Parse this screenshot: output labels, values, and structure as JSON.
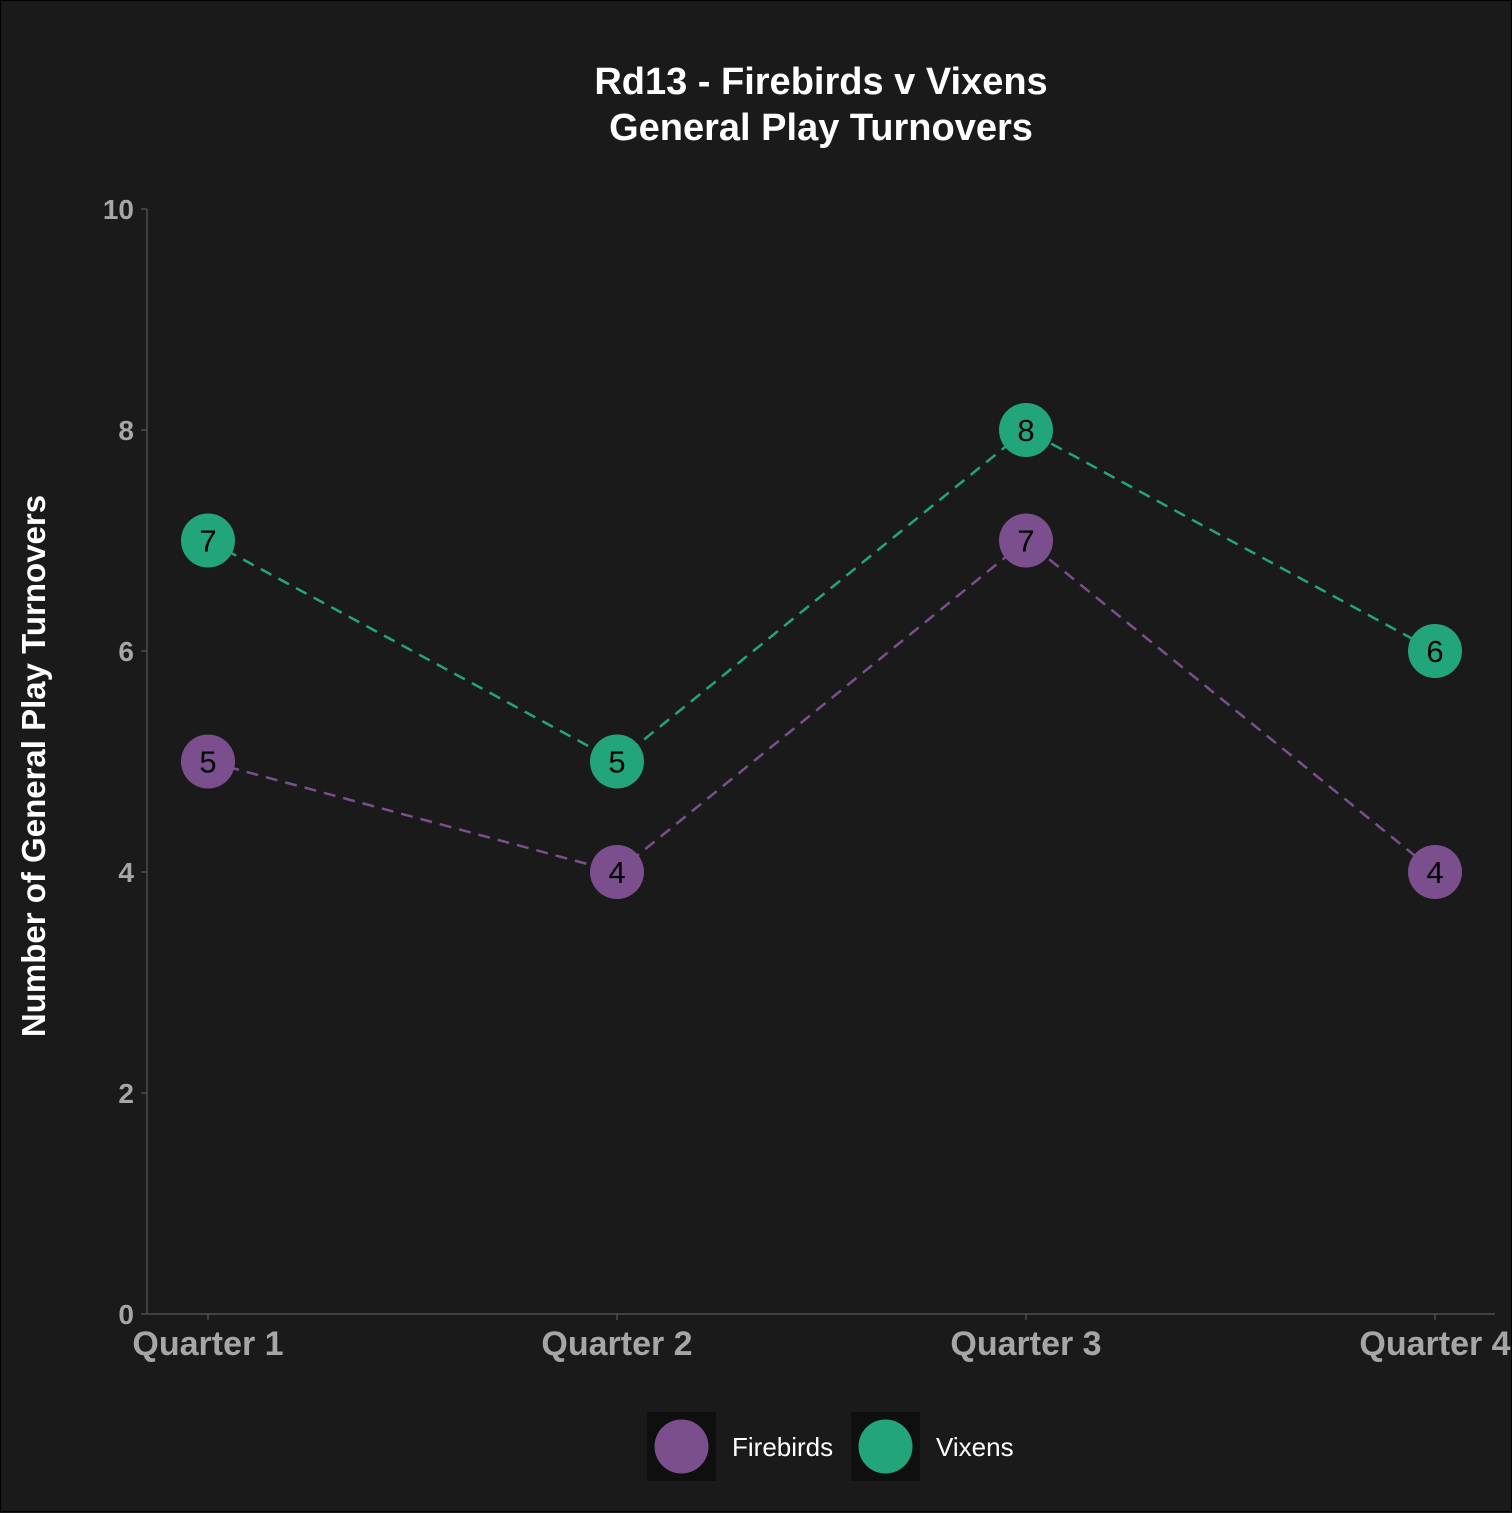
{
  "chart_data": {
    "type": "line",
    "title": [
      "Rd13 - Firebirds v Vixens",
      "General Play Turnovers"
    ],
    "xlabel": "",
    "ylabel": "Number of General Play Turnovers",
    "categories": [
      "Quarter 1",
      "Quarter 2",
      "Quarter 3",
      "Quarter 4"
    ],
    "ylim": [
      0,
      10
    ],
    "yticks": [
      0,
      2,
      4,
      6,
      8,
      10
    ],
    "grid": false,
    "line_style": "dashed",
    "legend_position": "bottom",
    "series": [
      {
        "name": "Firebirds",
        "color": "#7b4f8e",
        "values": [
          5,
          4,
          7,
          4
        ]
      },
      {
        "name": "Vixens",
        "color": "#23a57c",
        "values": [
          7,
          5,
          8,
          6
        ]
      }
    ]
  },
  "colors": {
    "background": "#1a1a1a",
    "axis": "#595959",
    "tick_text": "#a6a6a6",
    "title_text": "#ffffff",
    "legend_key_bg": "#0f0f0f"
  }
}
